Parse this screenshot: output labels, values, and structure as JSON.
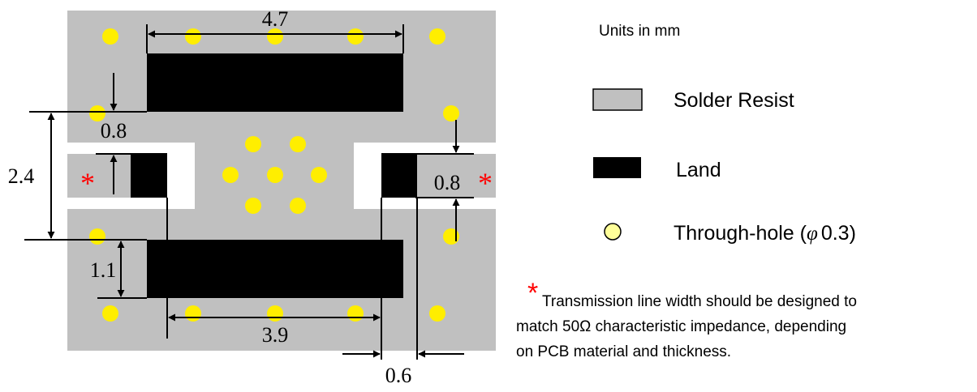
{
  "diagram": {
    "dimensions": {
      "top_width": "4.7",
      "gap_top": "0.8",
      "total_height": "2.4",
      "right_gap": "0.8",
      "pad_height": "1.1",
      "bottom_width": "3.9",
      "pad_offset": "0.6"
    },
    "marks": {
      "left_asterisk": "*",
      "right_asterisk": "*"
    }
  },
  "legend": {
    "units": "Units in mm",
    "solder_resist": "Solder Resist",
    "land": "Land",
    "through_hole": "Through-hole (",
    "through_hole_phi": "φ",
    "through_hole_size": "0.3)"
  },
  "note": {
    "asterisk": "*",
    "line1": "Transmission line width should be designed to",
    "line2": "match 50Ω characteristic impedance, depending",
    "line3": "on PCB material and thickness."
  },
  "colors": {
    "solder_resist": "#c0c0c0",
    "land": "#000000",
    "through_hole": "#ffee00",
    "asterisk": "#ff0000"
  }
}
